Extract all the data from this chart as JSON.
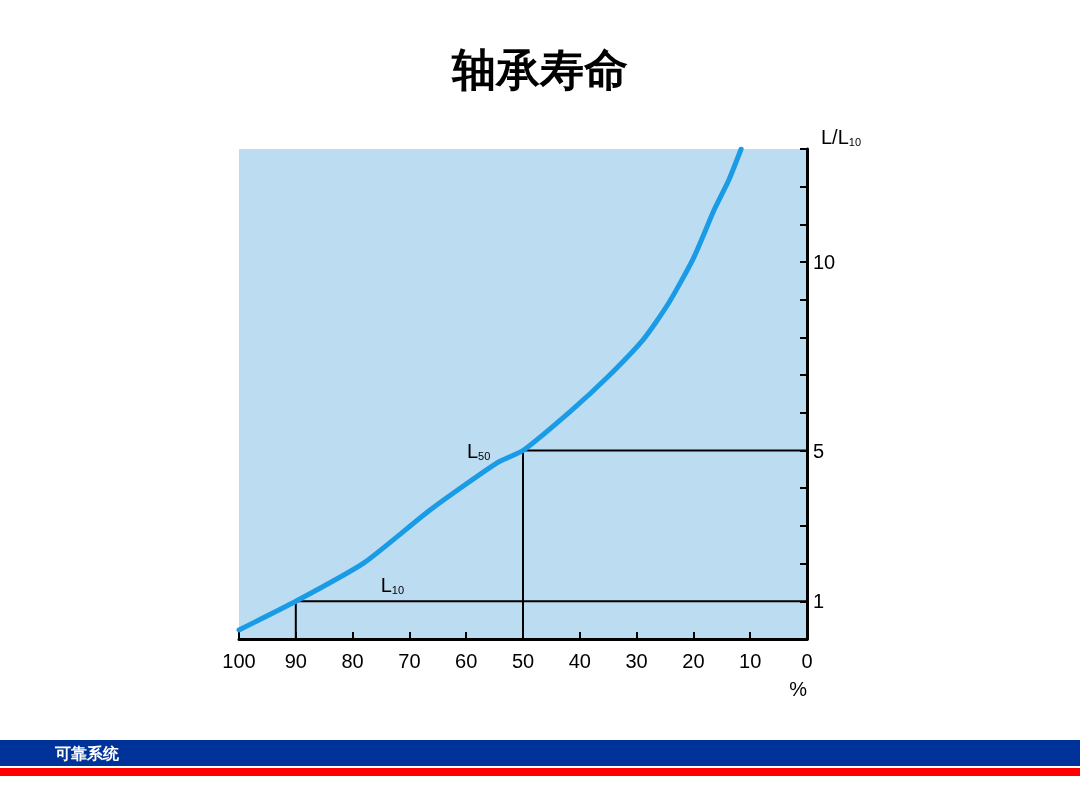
{
  "chart_data": {
    "type": "line",
    "title": "轴承寿命",
    "xlabel": "%",
    "ylabel": "L/L$_{10}$",
    "xlim": [
      100,
      0
    ],
    "xticks": [
      100,
      90,
      80,
      70,
      60,
      50,
      40,
      30,
      20,
      10,
      0
    ],
    "ylim": [
      0,
      13
    ],
    "yticks": [
      {
        "value": 0,
        "label": null
      },
      1,
      {
        "value": 2,
        "label": null
      },
      {
        "value": 3,
        "label": null
      },
      {
        "value": 4,
        "label": null
      },
      5,
      {
        "value": 6,
        "label": null
      },
      {
        "value": 7,
        "label": null
      },
      {
        "value": 8,
        "label": null
      },
      {
        "value": 9,
        "label": null
      },
      10,
      {
        "value": 11,
        "label": null
      },
      {
        "value": 12,
        "label": null
      },
      {
        "value": 13,
        "label": null
      }
    ],
    "grid": false,
    "marker": "none",
    "line_style": "solid",
    "series": [
      {
        "color": "#1a9be6",
        "x": [
          11.6,
          13.7,
          16.3,
          20,
          24.4,
          28.8,
          35.1,
          41.5,
          50,
          54.5,
          66.3,
          78,
          90,
          100
        ],
        "values": [
          13,
          12.2,
          11.4,
          10.1,
          8.9,
          7.95,
          6.95,
          6.06,
          5,
          4.68,
          3.43,
          2.02,
          1,
          0.24
        ]
      },
      {
        "color": "#000000",
        "x": [
          90,
          90,
          0
        ],
        "values": [
          0,
          1,
          1
        ]
      },
      {
        "color": "#000000",
        "x": [
          50,
          50,
          0
        ],
        "values": [
          0,
          5,
          5
        ]
      }
    ],
    "annotations": [
      {
        "text": "L$_{50}$",
        "x": 50,
        "y": 5
      },
      {
        "text": "L$_{10}$",
        "x": 73,
        "y": 1
      },
      "可靠系统"
    ]
  }
}
